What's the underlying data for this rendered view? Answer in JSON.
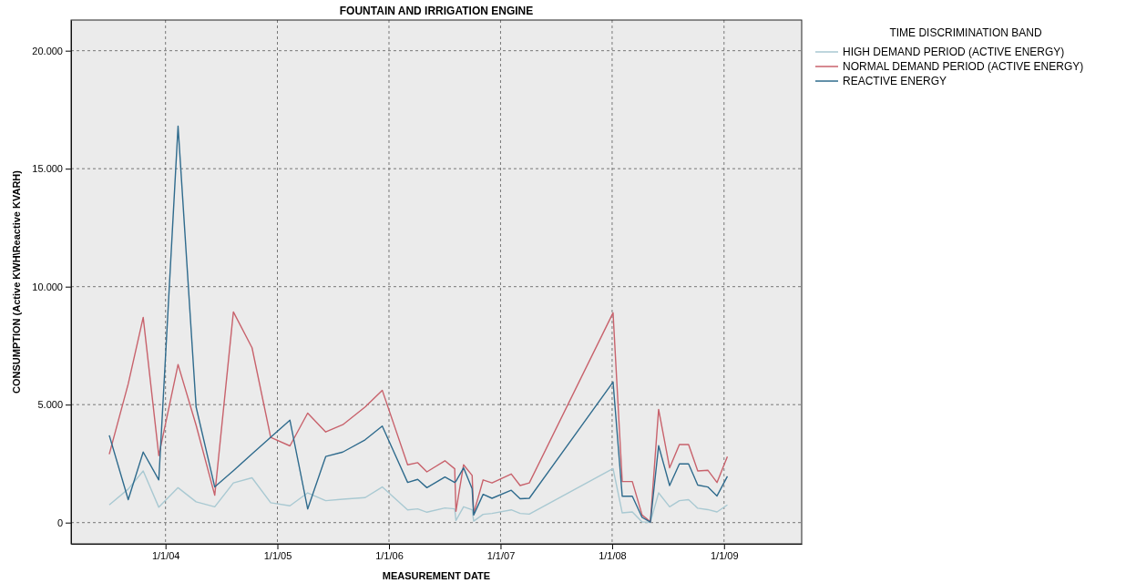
{
  "chart_data": {
    "type": "line",
    "title": "FOUNTAIN AND IRRIGATION ENGINE",
    "xlabel": "MEASUREMENT DATE",
    "ylabel": "CONSUMPTION (Active KWH\\Reactive KVARH)",
    "legend_title": "TIME DISCRIMINATION BAND",
    "x": [
      "2003-07-01",
      "2003-09-01",
      "2003-10-20",
      "2003-12-10",
      "2004-02-11",
      "2004-04-10",
      "2004-06-10",
      "2004-08-10",
      "2004-10-10",
      "2004-12-10",
      "2005-02-11",
      "2005-04-10",
      "2005-06-08",
      "2005-08-03",
      "2005-10-15",
      "2005-12-10",
      "2006-03-03",
      "2006-04-05",
      "2006-05-05",
      "2006-07-03",
      "2006-08-04",
      "2006-08-08",
      "2006-09-02",
      "2006-09-30",
      "2006-10-05",
      "2006-11-05",
      "2006-12-04",
      "2007-02-05",
      "2007-03-06",
      "2007-04-05",
      "2008-01-04",
      "2008-02-03",
      "2008-03-07",
      "2008-04-08",
      "2008-05-05",
      "2008-06-01",
      "2008-07-07",
      "2008-08-08",
      "2008-09-07",
      "2008-10-07",
      "2008-11-09",
      "2008-12-09",
      "2009-01-12"
    ],
    "series": [
      {
        "name": "HIGH DEMAND PERIOD (ACTIVE ENERGY)",
        "color": "#a9c9d2",
        "values": [
          750,
          1420,
          2190,
          650,
          1480,
          880,
          670,
          1680,
          1900,
          840,
          710,
          1260,
          930,
          990,
          1060,
          1510,
          540,
          580,
          440,
          620,
          580,
          90,
          670,
          540,
          60,
          350,
          390,
          540,
          390,
          360,
          2290,
          410,
          450,
          30,
          10,
          1260,
          670,
          930,
          970,
          610,
          550,
          450,
          750
        ]
      },
      {
        "name": "NORMAL DEMAND PERIOD (ACTIVE ENERGY)",
        "color": "#c8626c",
        "values": [
          2900,
          5880,
          8700,
          2840,
          6700,
          4130,
          1160,
          8930,
          7410,
          3610,
          3250,
          4640,
          3840,
          4150,
          4900,
          5610,
          2450,
          2540,
          2150,
          2620,
          2280,
          480,
          2450,
          2000,
          390,
          1810,
          1680,
          2060,
          1570,
          1680,
          8890,
          1740,
          1740,
          320,
          30,
          4800,
          2320,
          3310,
          3310,
          2190,
          2220,
          1700,
          2800
        ]
      },
      {
        "name": "REACTIVE ENERGY",
        "color": "#2f6b8d",
        "values": [
          3700,
          970,
          2990,
          1810,
          16800,
          4900,
          1510,
          2200,
          2910,
          3620,
          4340,
          580,
          2800,
          2990,
          3510,
          4090,
          1700,
          1830,
          1480,
          1930,
          1700,
          1750,
          2320,
          1440,
          320,
          1200,
          1030,
          1370,
          1010,
          1030,
          5960,
          1120,
          1120,
          220,
          20,
          3260,
          1570,
          2490,
          2490,
          1590,
          1510,
          1130,
          1960
        ]
      }
    ],
    "xlim": [
      "2003-02-26",
      "2009-09-12"
    ],
    "xticks": [
      {
        "value": "2004-01-01",
        "label": "1/1/04"
      },
      {
        "value": "2005-01-01",
        "label": "1/1/05"
      },
      {
        "value": "2006-01-01",
        "label": "1/1/06"
      },
      {
        "value": "2007-01-01",
        "label": "1/1/07"
      },
      {
        "value": "2008-01-01",
        "label": "1/1/08"
      },
      {
        "value": "2009-01-01",
        "label": "1/1/09"
      }
    ],
    "ylim": [
      -900,
      21300
    ],
    "yticks": [
      0,
      {
        "value": 5000,
        "label": "5.000"
      },
      {
        "value": 10000,
        "label": "10.000"
      },
      {
        "value": 15000,
        "label": "15.000"
      },
      {
        "value": 20000,
        "label": "20.000"
      }
    ],
    "grid": true,
    "legend": "top right",
    "line_style": "solid"
  }
}
